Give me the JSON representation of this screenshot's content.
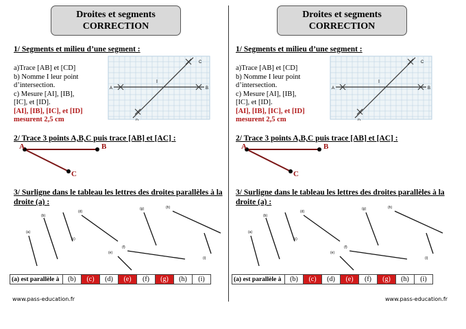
{
  "title_line1": "Droites et segments",
  "title_line2": "CORRECTION",
  "section1": {
    "label": "1/ Segments et milieu d’une segment :",
    "line_a": "a)Trace  [AB] et [CD]",
    "line_b": "b) Nomme I leur point",
    "line_b2": "d’intersection.",
    "line_c": "c) Mesure [AI], [IB],",
    "line_c2": "[IC], et [ID].",
    "answer1": "[AI], [IB], [IC], et [ID]",
    "answer2": "mesurent 2,5 cm",
    "grid_labels": {
      "A": "A",
      "B": "B",
      "C": "C",
      "D": "D",
      "I": "I"
    }
  },
  "section2": {
    "label": "2/ Trace 3 points A,B,C puis trace [AB] et [AC] :",
    "pA": "A",
    "pB": "B",
    "pC": "C"
  },
  "section3": {
    "label1": "3/ Surligne dans le tableau les lettres des droites parallèles à la",
    "label2": "droite (a) :",
    "line_labels": [
      "(a)",
      "(b)",
      "(c)",
      "(d)",
      "(e)",
      "(f)",
      "(g)",
      "(h)",
      "(i)"
    ]
  },
  "table": {
    "header": "(a) est parallèle à",
    "cells": [
      "(b)",
      "(c)",
      "(d)",
      "(e)",
      "(f)",
      "(g)",
      "(h)",
      "(i)"
    ],
    "highlighted": [
      false,
      true,
      false,
      true,
      false,
      true,
      false,
      false
    ],
    "highlight_color": "#d11a1a"
  },
  "footer": "www.pass-education.fr"
}
